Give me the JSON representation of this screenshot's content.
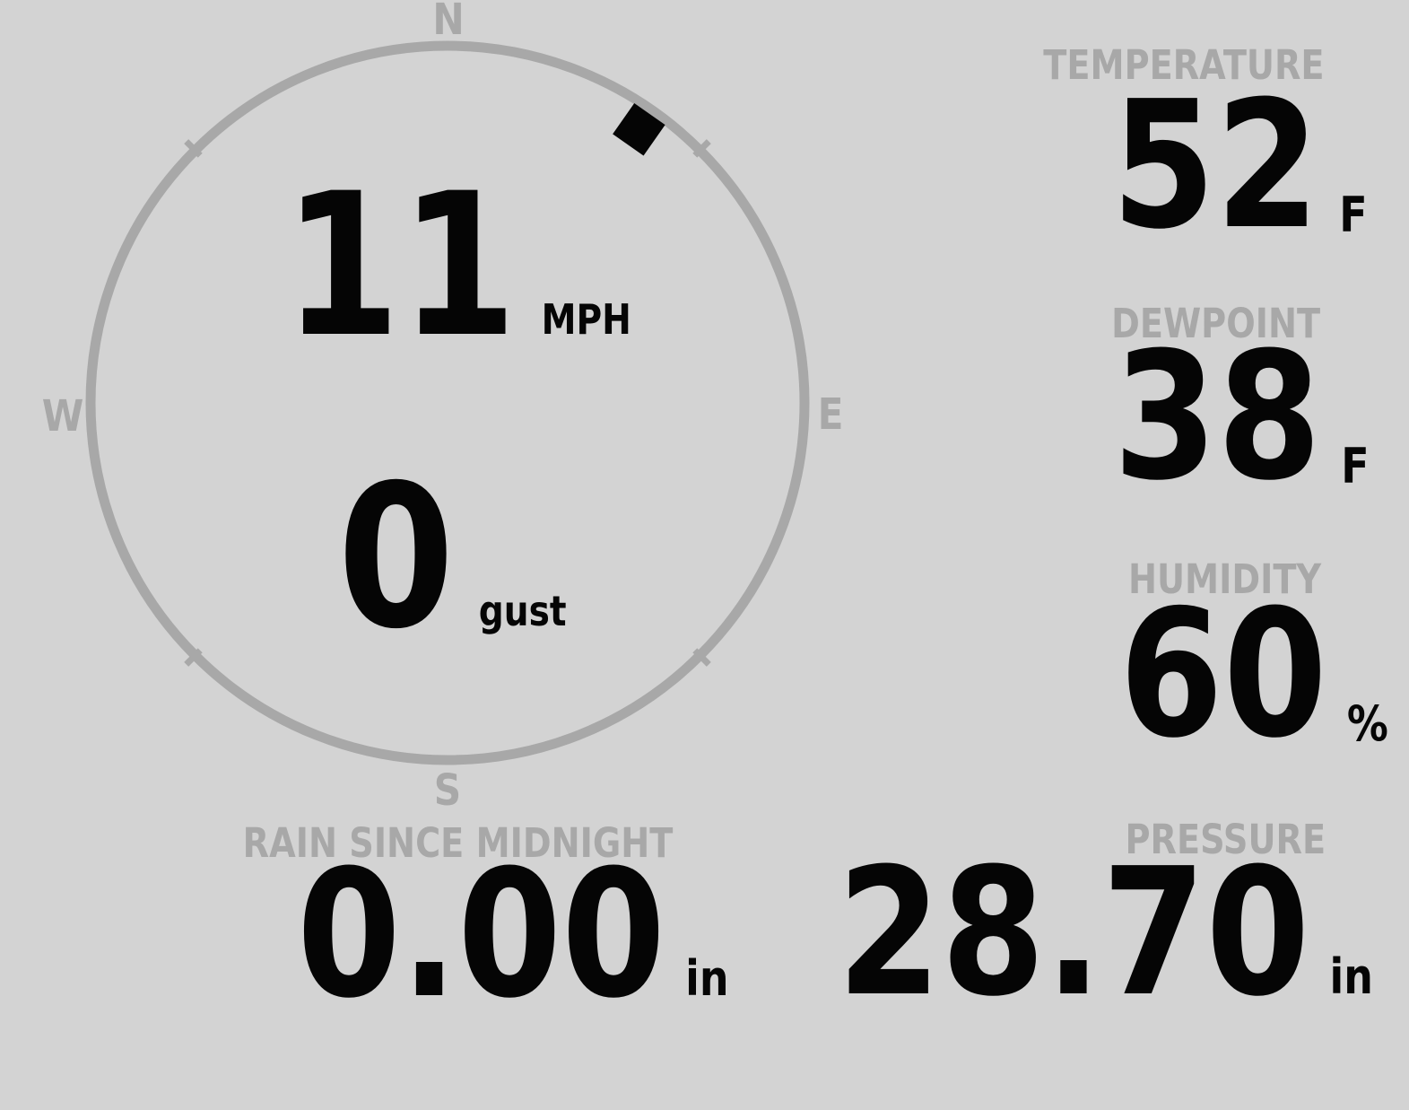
{
  "theme": {
    "background": "#d3d3d3",
    "muted": "#a8a8a8",
    "foreground": "#050505"
  },
  "wind": {
    "speed": "11",
    "speed_unit": "MPH",
    "gust": "0",
    "gust_unit": "gust",
    "direction_degrees": 35,
    "compass_points": {
      "north": "N",
      "east": "E",
      "south": "S",
      "west": "W"
    }
  },
  "metrics": [
    {
      "id": "temperature",
      "label": "TEMPERATURE",
      "value": "52",
      "unit": "F"
    },
    {
      "id": "dewpoint",
      "label": "DEWPOINT",
      "value": "38",
      "unit": "F"
    },
    {
      "id": "humidity",
      "label": "HUMIDITY",
      "value": "60",
      "unit": "%"
    },
    {
      "id": "rain_since_midnight",
      "label": "RAIN SINCE MIDNIGHT",
      "value": "0.00",
      "unit": "in"
    },
    {
      "id": "pressure",
      "label": "PRESSURE",
      "value": "28.70",
      "unit": "in"
    }
  ]
}
